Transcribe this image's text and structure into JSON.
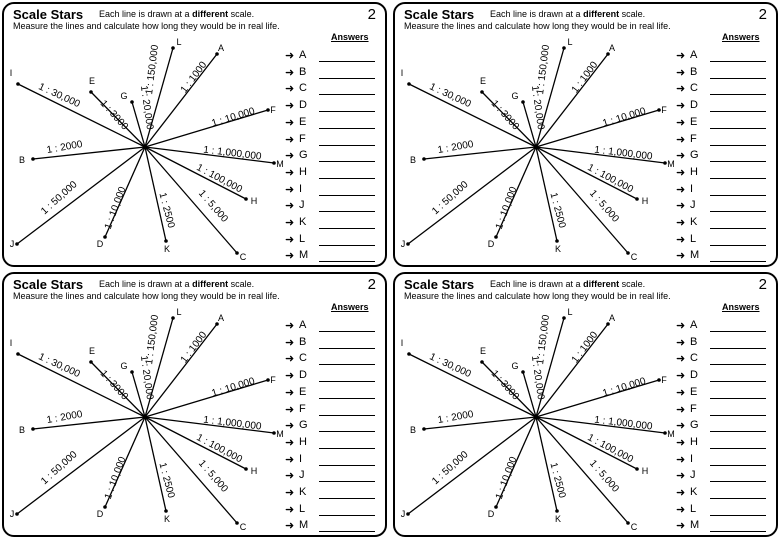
{
  "worksheet": {
    "title": "Scale Stars",
    "subtitle_prefix": "Each line is drawn at a",
    "subtitle_emphasis": "different",
    "subtitle_suffix": "scale.",
    "instructions": "Measure the lines and calculate how long they would be in real life.",
    "page_number": "2",
    "answers_header": "Answers",
    "arrow_symbol": "➜",
    "answer_letters": [
      "A",
      "B",
      "C",
      "D",
      "E",
      "F",
      "G",
      "H",
      "I",
      "J",
      "K",
      "L",
      "M"
    ],
    "star_lines": [
      {
        "letter": "L",
        "scale": "1 : 150,000"
      },
      {
        "letter": "A",
        "scale": "1 : 1000"
      },
      {
        "letter": "F",
        "scale": "1 : 10,000"
      },
      {
        "letter": "M",
        "scale": "1 : 1,000,000"
      },
      {
        "letter": "H",
        "scale": "1 : 100,000"
      },
      {
        "letter": "C",
        "scale": "1 : 5,000"
      },
      {
        "letter": "K",
        "scale": "1 : 2500"
      },
      {
        "letter": "D",
        "scale": "1 : 10,000"
      },
      {
        "letter": "J",
        "scale": "1 : 50,000"
      },
      {
        "letter": "B",
        "scale": "1 : 2000"
      },
      {
        "letter": "I",
        "scale": "1 : 30,000"
      },
      {
        "letter": "E",
        "scale": "1 : 3000"
      },
      {
        "letter": "G",
        "scale": "1 : 20,000"
      }
    ]
  }
}
